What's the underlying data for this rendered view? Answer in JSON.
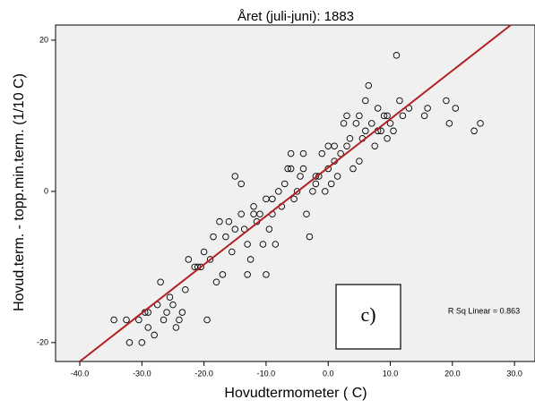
{
  "chart_data": {
    "type": "scatter",
    "title": "Året (juli-juni): 1883",
    "xlabel": "Hovudtermometer ( C)",
    "ylabel": "Hovud.term. - topp.min.term. (1/10 C)",
    "annotations": {
      "r_squared": "R Sq Linear = 0.863",
      "panel": "c)"
    },
    "xlim": [
      -43.9,
      33.3
    ],
    "ylim": [
      -22.5,
      22
    ],
    "xticks": [
      {
        "value": -40,
        "label": "-40.0"
      },
      {
        "value": -30,
        "label": "-30.0"
      },
      {
        "value": -20,
        "label": "-20.0"
      },
      {
        "value": -10,
        "label": "-10.0"
      },
      {
        "value": 0,
        "label": "0.0"
      },
      {
        "value": 10,
        "label": "10.0"
      },
      {
        "value": 20,
        "label": "20.0"
      },
      {
        "value": 30,
        "label": "30.0"
      }
    ],
    "yticks": [
      -20,
      0,
      20
    ],
    "color": "#000000",
    "background": "#f0f0f0",
    "fit_line": {
      "color": "#b22222",
      "x": [
        -40,
        29.4
      ],
      "y": [
        -22.5,
        22
      ]
    },
    "x": [
      -34.5,
      -32.5,
      -32,
      -30,
      -30.5,
      -29.5,
      -29,
      -28,
      -27.5,
      -27,
      -26,
      -25.5,
      -25,
      -24.5,
      -24,
      -23.5,
      -23,
      -22.5,
      -21.5,
      -20.5,
      -19.5,
      -19,
      -18,
      -17.5,
      -16.5,
      -16,
      -15.5,
      -15,
      -14,
      -13,
      -12,
      -11,
      -15,
      -14,
      -13,
      -12.5,
      -11.5,
      -10.5,
      -10,
      -9.5,
      -9,
      -8,
      -7.5,
      -7,
      -6.5,
      -6,
      -5.5,
      -5,
      -4.5,
      -4,
      -3.5,
      -3,
      -2.5,
      -2,
      -1.5,
      -1,
      -0.5,
      0,
      0.5,
      1,
      1.5,
      2,
      2.5,
      3,
      3.5,
      4,
      4.5,
      5,
      5.5,
      6,
      6.5,
      7,
      7.5,
      8,
      8.5,
      9,
      9.5,
      10,
      11,
      11.5,
      12,
      13,
      15.5,
      16,
      19,
      19.5,
      20.5,
      23.5,
      24.5,
      -29,
      -26.5,
      -21,
      -18.5,
      -13.5,
      -8.5,
      -9,
      -6,
      -4,
      -2,
      0,
      1,
      3,
      5,
      6,
      8,
      9.5,
      10.5,
      -10,
      -12,
      -20,
      -17
    ],
    "values": [
      -17,
      -17,
      -20,
      -20,
      -17,
      -16,
      -18,
      -19,
      -15,
      -12,
      -16,
      -14,
      -15,
      -18,
      -17,
      -16,
      -13,
      -9,
      -10,
      -10,
      -17,
      -9,
      -12,
      -4,
      -6,
      -4,
      -8,
      -5,
      -3,
      -7,
      -2,
      -3,
      2,
      1,
      -11,
      -9,
      -4,
      -7,
      -1,
      -5,
      -3,
      0,
      -2,
      1,
      3,
      5,
      -1,
      0,
      2,
      3,
      -3,
      -6,
      0,
      1,
      2,
      5,
      0,
      3,
      1,
      4,
      2,
      5,
      9,
      6,
      7,
      3,
      9,
      10,
      7,
      12,
      14,
      9,
      6,
      11,
      8,
      10,
      7,
      9,
      18,
      12,
      10,
      11,
      10,
      11,
      12,
      9,
      11,
      8,
      9,
      -16,
      -17,
      -10,
      -6,
      -5,
      -7,
      -1,
      3,
      5,
      2,
      6,
      6,
      10,
      4,
      8,
      8,
      10,
      8,
      -11,
      -3,
      -8,
      -11
    ]
  }
}
